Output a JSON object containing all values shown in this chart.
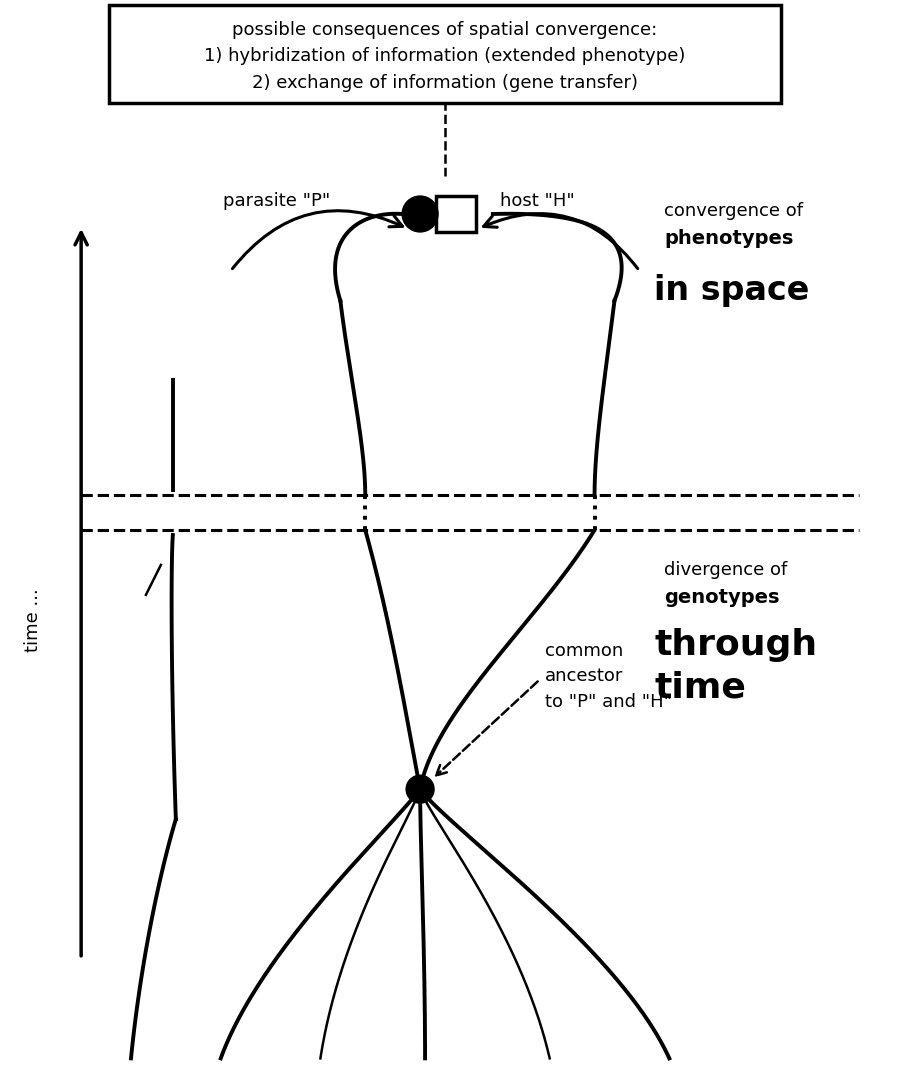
{
  "box_text": "possible consequences of spatial convergence:\n1) hybridization of information (extended phenotype)\n2) exchange of information (gene transfer)",
  "parasite_label": "parasite \"P\"",
  "host_label": "host \"H\"",
  "convergence_label1": "convergence of",
  "convergence_label2": "phenotypes",
  "convergence_label3": "in space",
  "divergence_label1": "divergence of",
  "divergence_label2": "genotypes",
  "divergence_label3": "through",
  "divergence_label4": "time",
  "ancestor_label1": "common",
  "ancestor_label2": "ancestor",
  "ancestor_label3": "to \"P\" and \"H\"",
  "time_label": "time ...",
  "bg_color": "#ffffff",
  "line_color": "#000000",
  "lw_thick": 2.8,
  "lw_thin": 1.8
}
